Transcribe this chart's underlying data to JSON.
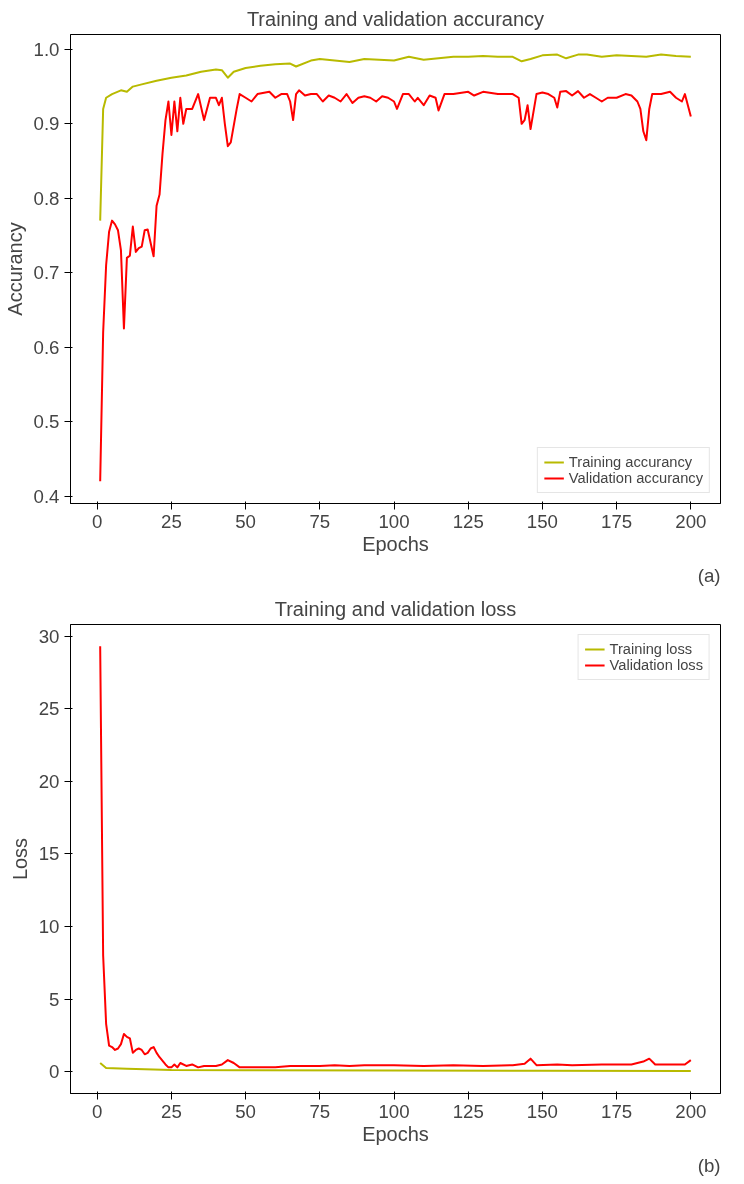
{
  "chart_data": [
    {
      "type": "line",
      "title": "Training and validation accurancy",
      "xlabel": "Epochs",
      "ylabel": "Accurancy",
      "annotations": [
        "(a)"
      ],
      "xlim": [
        -9,
        210
      ],
      "xticks": [
        0,
        25,
        50,
        75,
        100,
        125,
        150,
        175,
        200
      ],
      "ylim": [
        0.39,
        1.02
      ],
      "yticks": [
        0.4,
        0.5,
        0.6,
        0.7,
        0.8,
        0.9,
        {
          "value": 1.0,
          "label": "1.0"
        }
      ],
      "grid": false,
      "legend": "bottom right",
      "line_style": "solid",
      "series": [
        {
          "name": "Training accurancy",
          "color": "#b8ba00",
          "x": [
            1,
            2,
            3,
            5,
            8,
            10,
            12,
            15,
            20,
            25,
            30,
            35,
            40,
            42,
            44,
            46,
            50,
            55,
            60,
            65,
            67,
            72,
            75,
            80,
            85,
            90,
            95,
            100,
            105,
            110,
            115,
            120,
            125,
            130,
            135,
            140,
            143,
            146,
            150,
            155,
            158,
            162,
            165,
            170,
            175,
            180,
            185,
            190,
            195,
            200
          ],
          "values": [
            0.77,
            0.92,
            0.935,
            0.94,
            0.945,
            0.943,
            0.95,
            0.953,
            0.958,
            0.962,
            0.965,
            0.97,
            0.973,
            0.972,
            0.962,
            0.97,
            0.975,
            0.978,
            0.98,
            0.981,
            0.977,
            0.985,
            0.987,
            0.985,
            0.983,
            0.987,
            0.986,
            0.985,
            0.99,
            0.986,
            0.988,
            0.99,
            0.99,
            0.991,
            0.99,
            0.99,
            0.984,
            0.987,
            0.992,
            0.993,
            0.988,
            0.993,
            0.993,
            0.99,
            0.992,
            0.991,
            0.99,
            0.993,
            0.991,
            0.99
          ]
        },
        {
          "name": "Validation accurancy",
          "color": "#ff0000",
          "x": [
            1,
            2,
            3,
            4,
            5,
            6,
            7,
            8,
            9,
            10,
            11,
            12,
            13,
            14,
            15,
            16,
            17,
            18,
            19,
            20,
            21,
            22,
            23,
            24,
            25,
            26,
            27,
            28,
            29,
            30,
            32,
            34,
            36,
            38,
            40,
            41,
            42,
            43,
            44,
            45,
            47,
            48,
            50,
            52,
            54,
            58,
            60,
            62,
            64,
            65,
            66,
            67,
            68,
            70,
            72,
            74,
            76,
            78,
            80,
            82,
            84,
            86,
            88,
            90,
            92,
            94,
            96,
            98,
            100,
            101,
            103,
            105,
            107,
            108,
            110,
            112,
            114,
            115,
            117,
            120,
            125,
            127,
            130,
            135,
            140,
            142,
            143,
            144,
            145,
            146,
            148,
            150,
            152,
            154,
            155,
            156,
            158,
            160,
            162,
            164,
            166,
            168,
            170,
            172,
            175,
            178,
            180,
            182,
            183,
            184,
            185,
            186,
            187,
            190,
            193,
            195,
            197,
            198,
            200
          ],
          "values": [
            0.42,
            0.62,
            0.71,
            0.755,
            0.77,
            0.765,
            0.757,
            0.73,
            0.625,
            0.72,
            0.723,
            0.762,
            0.728,
            0.733,
            0.735,
            0.757,
            0.758,
            0.74,
            0.722,
            0.79,
            0.805,
            0.86,
            0.905,
            0.93,
            0.885,
            0.93,
            0.89,
            0.935,
            0.9,
            0.92,
            0.92,
            0.94,
            0.905,
            0.935,
            0.935,
            0.925,
            0.935,
            0.9,
            0.87,
            0.875,
            0.92,
            0.94,
            0.935,
            0.93,
            0.94,
            0.943,
            0.935,
            0.94,
            0.94,
            0.93,
            0.905,
            0.94,
            0.945,
            0.938,
            0.94,
            0.94,
            0.93,
            0.938,
            0.935,
            0.93,
            0.94,
            0.928,
            0.935,
            0.937,
            0.935,
            0.93,
            0.937,
            0.935,
            0.93,
            0.92,
            0.94,
            0.94,
            0.93,
            0.935,
            0.925,
            0.938,
            0.935,
            0.918,
            0.94,
            0.94,
            0.943,
            0.938,
            0.943,
            0.94,
            0.94,
            0.935,
            0.9,
            0.905,
            0.925,
            0.893,
            0.94,
            0.942,
            0.94,
            0.935,
            0.922,
            0.943,
            0.944,
            0.938,
            0.944,
            0.935,
            0.94,
            0.935,
            0.93,
            0.935,
            0.935,
            0.94,
            0.938,
            0.93,
            0.92,
            0.89,
            0.878,
            0.92,
            0.94,
            0.94,
            0.943,
            0.935,
            0.93,
            0.94,
            0.91
          ]
        }
      ]
    },
    {
      "type": "line",
      "title": "Training and validation loss",
      "xlabel": "Epochs",
      "ylabel": "Loss",
      "annotations": [
        "(b)"
      ],
      "xlim": [
        -9,
        210
      ],
      "xticks": [
        0,
        25,
        50,
        75,
        100,
        125,
        150,
        175,
        200
      ],
      "ylim": [
        -1.5,
        30.8
      ],
      "yticks": [
        0,
        5,
        10,
        15,
        20,
        25,
        30
      ],
      "grid": false,
      "legend": "top right",
      "line_style": "solid",
      "series": [
        {
          "name": "Training loss",
          "color": "#b8ba00",
          "x": [
            1,
            3,
            10,
            25,
            50,
            100,
            150,
            200
          ],
          "values": [
            0.6,
            0.25,
            0.2,
            0.12,
            0.1,
            0.08,
            0.06,
            0.05
          ]
        },
        {
          "name": "Validation loss",
          "color": "#ff0000",
          "x": [
            1,
            2,
            3,
            4,
            5,
            6,
            7,
            8,
            9,
            10,
            11,
            12,
            13,
            14,
            15,
            16,
            17,
            18,
            19,
            20,
            21,
            23,
            24,
            25,
            26,
            27,
            28,
            30,
            32,
            34,
            36,
            40,
            42,
            44,
            46,
            48,
            55,
            60,
            65,
            70,
            75,
            80,
            85,
            90,
            100,
            110,
            120,
            130,
            140,
            144,
            146,
            148,
            155,
            160,
            170,
            180,
            184,
            186,
            188,
            195,
            198,
            200
          ],
          "values": [
            29.3,
            8.0,
            3.3,
            1.8,
            1.7,
            1.5,
            1.6,
            1.9,
            2.6,
            2.4,
            2.3,
            1.3,
            1.5,
            1.6,
            1.5,
            1.2,
            1.3,
            1.6,
            1.7,
            1.3,
            1.0,
            0.5,
            0.3,
            0.3,
            0.5,
            0.3,
            0.6,
            0.4,
            0.5,
            0.3,
            0.4,
            0.4,
            0.5,
            0.8,
            0.6,
            0.3,
            0.3,
            0.3,
            0.4,
            0.4,
            0.4,
            0.45,
            0.4,
            0.45,
            0.45,
            0.4,
            0.45,
            0.4,
            0.45,
            0.55,
            0.9,
            0.45,
            0.5,
            0.45,
            0.5,
            0.5,
            0.7,
            0.9,
            0.5,
            0.5,
            0.5,
            0.8
          ]
        }
      ]
    }
  ]
}
